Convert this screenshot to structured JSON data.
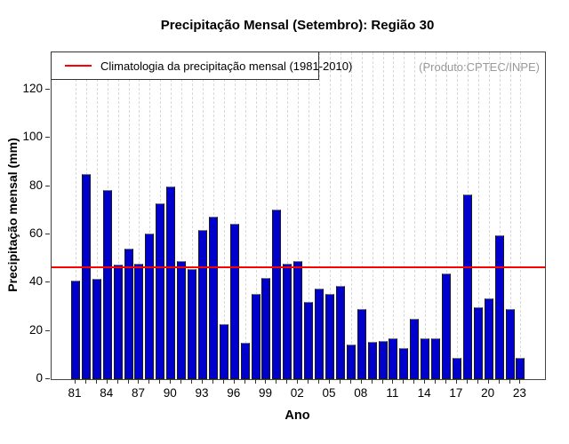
{
  "title": "Precipitação Mensal (Setembro): Região 30",
  "legend": {
    "label": "Climatologia da precipitação mensal (1981-2010)"
  },
  "watermark": "(Produto:CPTEC/INPE)",
  "colors": {
    "bar_fill": "#0000CD",
    "bar_border": "#1a1a1a",
    "climatology_line": "#ff0000",
    "gridline": "#d9d9d9",
    "watermark_text": "#9a9a9a"
  },
  "chart_data": {
    "type": "bar",
    "title": "Precipitação Mensal (Setembro): Região 30",
    "xlabel": "Ano",
    "ylabel": "Precipitação mensal (mm)",
    "ylim": [
      0,
      135.5
    ],
    "yticks": [
      0,
      20,
      40,
      60,
      80,
      100,
      120
    ],
    "x": [
      1981,
      1982,
      1983,
      1984,
      1985,
      1986,
      1987,
      1988,
      1989,
      1990,
      1991,
      1992,
      1993,
      1994,
      1995,
      1996,
      1997,
      1998,
      1999,
      2000,
      2001,
      2002,
      2003,
      2004,
      2005,
      2006,
      2007,
      2008,
      2009,
      2010,
      2011,
      2012,
      2013,
      2014,
      2015,
      2016,
      2017,
      2018,
      2019,
      2020,
      2021,
      2022,
      2023
    ],
    "values": [
      41,
      85,
      41.5,
      78.5,
      47.5,
      54,
      48,
      60.5,
      73,
      80,
      49,
      45.5,
      62,
      67.5,
      23,
      64.5,
      15,
      35.5,
      42,
      70.5,
      48,
      49,
      32,
      37.5,
      35.5,
      38.5,
      14.5,
      29,
      15.5,
      16,
      17,
      13,
      25,
      17,
      17,
      44,
      9,
      76.5,
      30,
      33.5,
      59.5,
      29,
      9
    ],
    "x_tick_labels": [
      "81",
      "84",
      "87",
      "90",
      "93",
      "96",
      "99",
      "02",
      "05",
      "08",
      "11",
      "14",
      "17",
      "20",
      "23"
    ],
    "x_tick_label_every": 3,
    "climatology_value": 46.6,
    "grid": "vertical-dashed",
    "legend_position": "top-left-inside",
    "series_name": "Precipitação mensal"
  }
}
